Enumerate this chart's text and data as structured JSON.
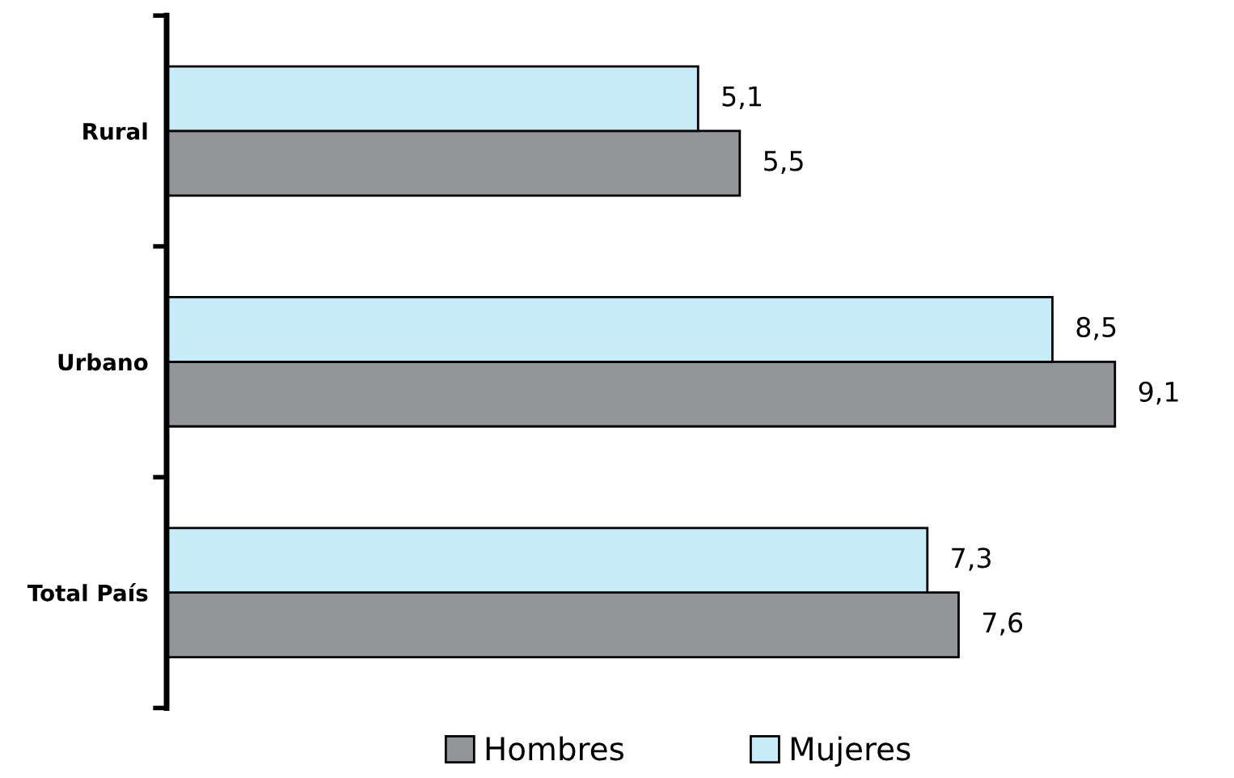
{
  "chart_data": {
    "type": "bar",
    "orientation": "horizontal",
    "categories": [
      "Rural",
      "Urbano",
      "Total País"
    ],
    "series": [
      {
        "name": "Hombres",
        "color": "#939598",
        "values": [
          5.5,
          9.1,
          7.6
        ],
        "value_labels": [
          "5,5",
          "9,1",
          "7,6"
        ]
      },
      {
        "name": "Mujeres",
        "color": "#c6ebf9",
        "values": [
          5.1,
          8.5,
          7.3
        ],
        "value_labels": [
          "5,1",
          "8,5",
          "7,3"
        ]
      }
    ],
    "legend": "bottom",
    "grid": false,
    "tick_labels": "y"
  }
}
